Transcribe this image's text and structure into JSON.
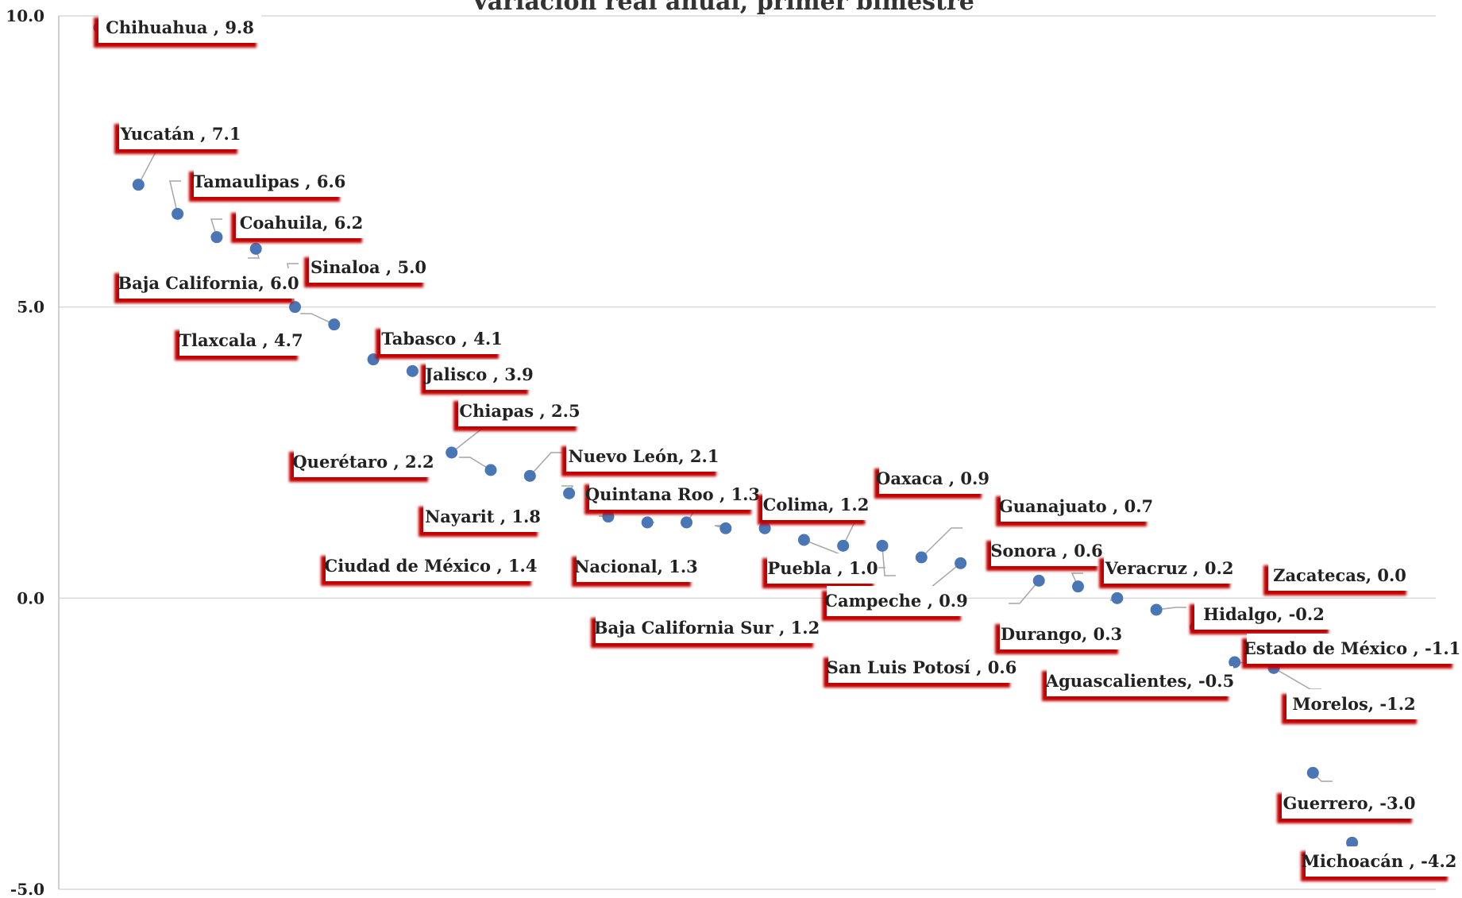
{
  "chart_data": {
    "type": "scatter",
    "title": "Variación real anual, primer bimestre",
    "xlabel": "",
    "ylabel": "",
    "ylim": [
      -5.0,
      10.0
    ],
    "yticks": [
      "10.0",
      "5.0",
      "0.0",
      "-5.0"
    ],
    "grid": true,
    "legend": "none",
    "colors": {
      "marker": "#4a76b5",
      "leader": "#a6a6a6",
      "label_shadow": "#c00000",
      "gridline": "#d9d9d9"
    },
    "points": [
      {
        "x": 1,
        "y": 9.8,
        "label": "Chihuahua , 9.8"
      },
      {
        "x": 2,
        "y": 7.1,
        "label": "Yucatán , 7.1"
      },
      {
        "x": 3,
        "y": 6.6,
        "label": "Tamaulipas , 6.6"
      },
      {
        "x": 4,
        "y": 6.2,
        "label": "Coahuila, 6.2"
      },
      {
        "x": 5,
        "y": 6.0,
        "label": "Baja California, 6.0"
      },
      {
        "x": 6,
        "y": 5.0,
        "label": "Sinaloa , 5.0"
      },
      {
        "x": 7,
        "y": 4.7,
        "label": "Tlaxcala , 4.7"
      },
      {
        "x": 8,
        "y": 4.1,
        "label": "Tabasco , 4.1"
      },
      {
        "x": 9,
        "y": 3.9,
        "label": "Jalisco , 3.9"
      },
      {
        "x": 10,
        "y": 2.5,
        "label": "Chiapas , 2.5"
      },
      {
        "x": 11,
        "y": 2.2,
        "label": "Querétaro , 2.2"
      },
      {
        "x": 12,
        "y": 2.1,
        "label": "Nuevo León, 2.1"
      },
      {
        "x": 13,
        "y": 1.8,
        "label": "Nayarit , 1.8"
      },
      {
        "x": 14,
        "y": 1.4,
        "label": "Ciudad de México , 1.4"
      },
      {
        "x": 15,
        "y": 1.3,
        "label": "Nacional, 1.3"
      },
      {
        "x": 16,
        "y": 1.3,
        "label": "Quintana Roo , 1.3"
      },
      {
        "x": 17,
        "y": 1.2,
        "label": "Baja California Sur , 1.2"
      },
      {
        "x": 18,
        "y": 1.2,
        "label": "Colima, 1.2"
      },
      {
        "x": 19,
        "y": 1.0,
        "label": "Puebla , 1.0"
      },
      {
        "x": 20,
        "y": 0.9,
        "label": "Oaxaca , 0.9"
      },
      {
        "x": 21,
        "y": 0.9,
        "label": "Campeche , 0.9"
      },
      {
        "x": 22,
        "y": 0.7,
        "label": "Guanajuato , 0.7"
      },
      {
        "x": 23,
        "y": 0.6,
        "label": "San Luis Potosí , 0.6"
      },
      {
        "x": 24,
        "y": 0.6,
        "label": "Sonora , 0.6"
      },
      {
        "x": 25,
        "y": 0.3,
        "label": "Durango, 0.3"
      },
      {
        "x": 26,
        "y": 0.2,
        "label": "Veracruz , 0.2"
      },
      {
        "x": 27,
        "y": 0.0,
        "label": "Zacatecas, 0.0"
      },
      {
        "x": 28,
        "y": -0.2,
        "label": "Hidalgo, -0.2"
      },
      {
        "x": 29,
        "y": -0.5,
        "label": "Aguascalientes, -0.5"
      },
      {
        "x": 30,
        "y": -1.1,
        "label": "Estado de  México , -1.1"
      },
      {
        "x": 31,
        "y": -1.2,
        "label": "Morelos, -1.2"
      },
      {
        "x": 32,
        "y": -3.0,
        "label": "Guerrero, -3.0"
      },
      {
        "x": 33,
        "y": -4.2,
        "label": "Michoacán , -4.2"
      }
    ]
  }
}
